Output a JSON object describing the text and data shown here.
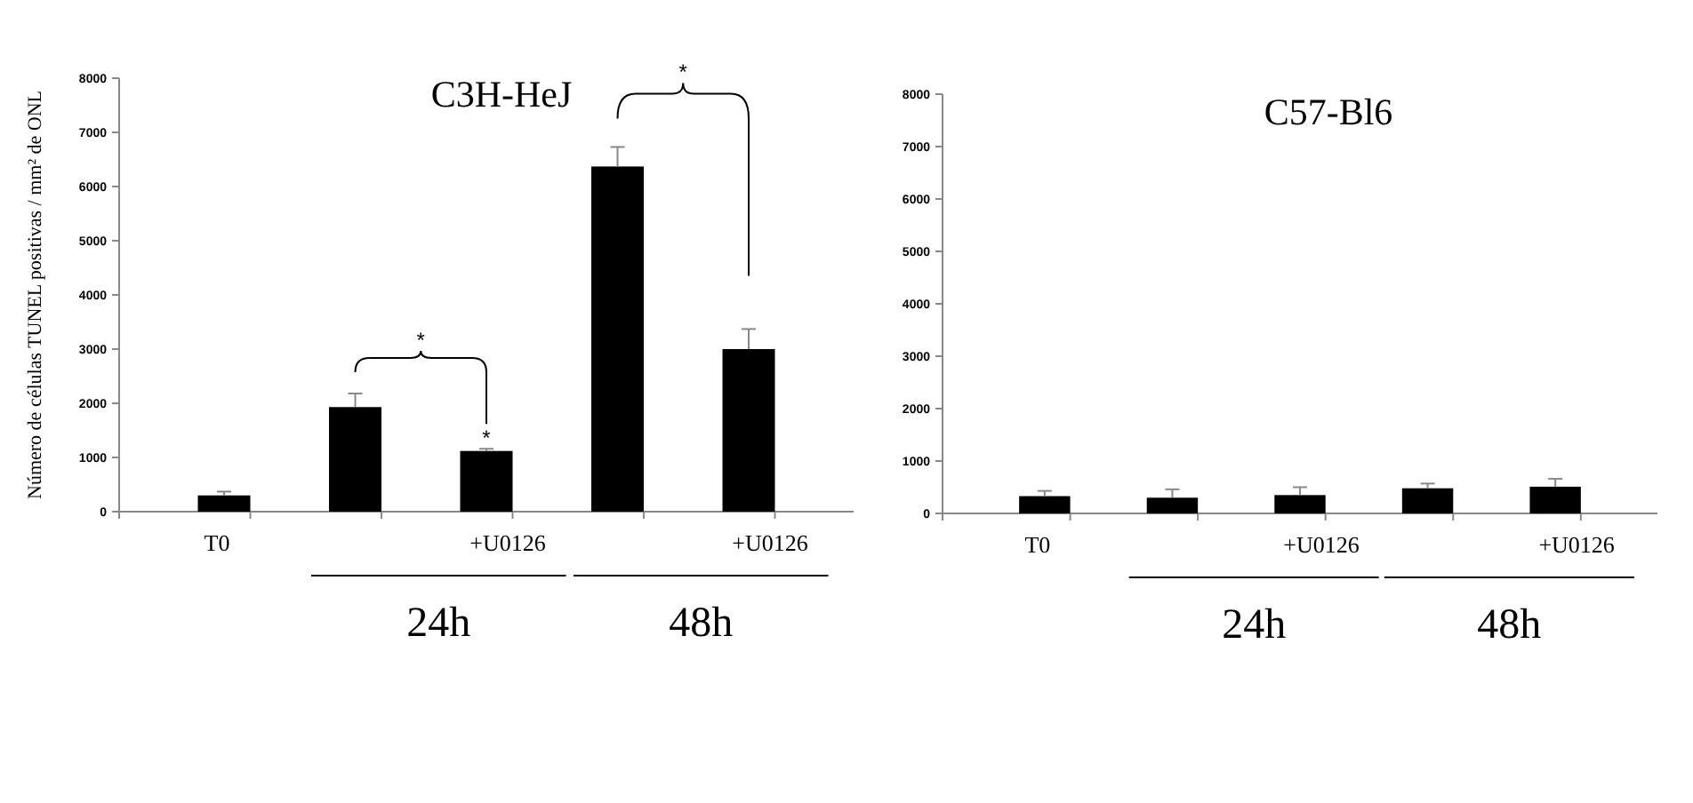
{
  "chart_data": [
    {
      "type": "bar",
      "title": "C3H-HeJ",
      "ylabel": "Número de células TUNEL positivas / mm² de ONL",
      "categories": [
        "T0",
        null,
        "+U0126",
        null,
        "+U0126"
      ],
      "series": [
        {
          "color": "#000000",
          "values": [
            300,
            1930,
            1120,
            6370,
            3000
          ],
          "errors": [
            70,
            250,
            40,
            360,
            370
          ]
        }
      ],
      "ylim": [
        0,
        8000
      ],
      "yticks": [
        0,
        1000,
        2000,
        3000,
        4000,
        5000,
        6000,
        7000,
        8000
      ],
      "grid": false,
      "annotations": [
        "*",
        "*",
        "*",
        "24h",
        "48h"
      ]
    },
    {
      "type": "bar",
      "title": "C57-Bl6",
      "categories": [
        "T0",
        null,
        "+U0126",
        null,
        "+U0126"
      ],
      "series": [
        {
          "color": "#000000",
          "values": [
            330,
            300,
            350,
            480,
            510
          ],
          "errors": [
            100,
            160,
            150,
            90,
            150
          ]
        }
      ],
      "ylim": [
        0,
        8000
      ],
      "yticks": [
        0,
        1000,
        2000,
        3000,
        4000,
        5000,
        6000,
        7000,
        8000
      ],
      "grid": false,
      "annotations": [
        "24h",
        "48h"
      ]
    }
  ]
}
